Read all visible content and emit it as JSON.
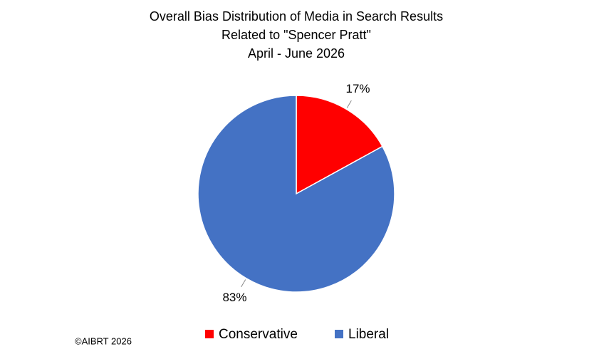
{
  "chart_data": {
    "type": "pie",
    "title": [
      "Overall Bias Distribution of Media in Search Results",
      "Related to \"Spencer Pratt\"",
      "April - June 2026"
    ],
    "categories": [
      "Conservative",
      "Liberal"
    ],
    "values": [
      17,
      83
    ],
    "value_labels": [
      "17%",
      "83%"
    ],
    "colors": [
      "#ff0000",
      "#4472c4"
    ],
    "legend": "bottom",
    "copyright": "©AIBRT 2026"
  }
}
